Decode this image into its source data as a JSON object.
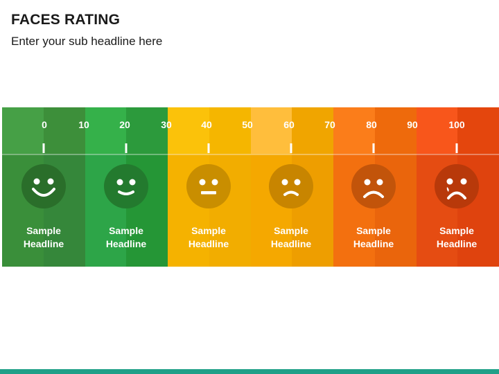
{
  "slide": {
    "title": "FACES RATING",
    "subtitle": "Enter your sub headline here"
  },
  "scale": {
    "ticks": [
      "0",
      "10",
      "20",
      "30",
      "40",
      "50",
      "60",
      "70",
      "80",
      "90",
      "100"
    ]
  },
  "segments": [
    {
      "face": "very-happy-face-icon",
      "headline_line1": "Sample",
      "headline_line2": "Headline",
      "color": "#3a8f3a"
    },
    {
      "face": "happy-face-icon",
      "headline_line1": "Sample",
      "headline_line2": "Headline",
      "color": "#2fa33b"
    },
    {
      "face": "neutral-face-icon",
      "headline_line1": "Sample",
      "headline_line2": "Headline",
      "color": "#f5b200"
    },
    {
      "face": "slightly-sad-face-icon",
      "headline_line1": "Sample",
      "headline_line2": "Headline",
      "color": "#f0a300"
    },
    {
      "face": "sad-face-icon",
      "headline_line1": "Sample",
      "headline_line2": "Headline",
      "color": "#f06a0f"
    },
    {
      "face": "crying-face-icon",
      "headline_line1": "Sample",
      "headline_line2": "Headline",
      "color": "#e24a10"
    }
  ],
  "colors": {
    "footer": "#20a088"
  }
}
